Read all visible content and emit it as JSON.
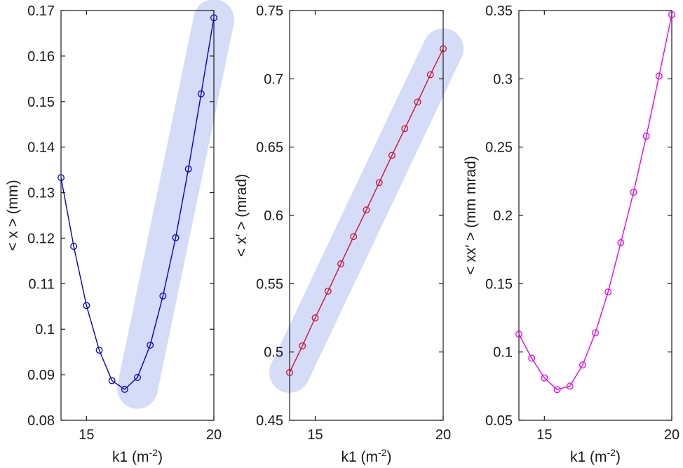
{
  "chart_data": [
    {
      "type": "line",
      "name": "x-rms",
      "xlabel": "k1 (m",
      "xlabel_sup": "-2",
      "xlabel_close": ")",
      "ylabel": "< x > (mm)",
      "xlim": [
        14,
        20
      ],
      "ylim": [
        0.08,
        0.17
      ],
      "xticks": [
        15,
        20
      ],
      "yticks": [
        "0.08",
        "0.09",
        "0.1",
        "0.11",
        "0.12",
        "0.13",
        "0.14",
        "0.15",
        "0.16",
        "0.17"
      ],
      "color": "#0000cc",
      "highlight_color": "#d5dcf8",
      "highlight_from": [
        17.0,
        0.087
      ],
      "highlight_to": [
        20.0,
        0.168
      ],
      "x": [
        14.0,
        14.5,
        15.0,
        15.5,
        16.0,
        16.5,
        17.0,
        17.5,
        18.0,
        18.5,
        19.0,
        19.5,
        20.0
      ],
      "y": [
        0.1333,
        0.1182,
        0.1052,
        0.0954,
        0.0887,
        0.0868,
        0.0894,
        0.0965,
        0.1073,
        0.1201,
        0.1352,
        0.1517,
        0.1684
      ]
    },
    {
      "type": "line",
      "name": "xprime-rms",
      "xlabel": "k1 (m",
      "xlabel_sup": "-2",
      "xlabel_close": ")",
      "ylabel": "< x′ >  (mrad)",
      "xlim": [
        14,
        20
      ],
      "ylim": [
        0.45,
        0.75
      ],
      "xticks": [
        15,
        20
      ],
      "yticks": [
        "0.45",
        "0.5",
        "0.55",
        "0.6",
        "0.65",
        "0.7",
        "0.75"
      ],
      "color": "#cc1133",
      "highlight_color": "#d5dcf8",
      "highlight_from": [
        14.0,
        0.485
      ],
      "highlight_to": [
        20.0,
        0.722
      ],
      "x": [
        14.0,
        14.5,
        15.0,
        15.5,
        16.0,
        16.5,
        17.0,
        17.5,
        18.0,
        18.5,
        19.0,
        19.5,
        20.0
      ],
      "y": [
        0.485,
        0.5045,
        0.525,
        0.5445,
        0.5645,
        0.5845,
        0.604,
        0.624,
        0.644,
        0.6635,
        0.683,
        0.703,
        0.722
      ]
    },
    {
      "type": "line",
      "name": "xxprime",
      "xlabel": "k1 (m",
      "xlabel_sup": "-2",
      "xlabel_close": ")",
      "ylabel": "< xx′ > (mm mrad)",
      "xlim": [
        14,
        20
      ],
      "ylim": [
        0.05,
        0.35
      ],
      "xticks": [
        15,
        20
      ],
      "yticks": [
        "0.05",
        "0.1",
        "0.15",
        "0.2",
        "0.25",
        "0.3",
        "0.35"
      ],
      "color": "#ee00ee",
      "highlight_color": null,
      "x": [
        14.0,
        14.5,
        15.0,
        15.5,
        16.0,
        16.5,
        17.0,
        17.5,
        18.0,
        18.5,
        19.0,
        19.5,
        20.0
      ],
      "y": [
        0.113,
        0.0955,
        0.081,
        0.0725,
        0.075,
        0.0905,
        0.114,
        0.144,
        0.18,
        0.217,
        0.258,
        0.302,
        0.347
      ]
    }
  ]
}
